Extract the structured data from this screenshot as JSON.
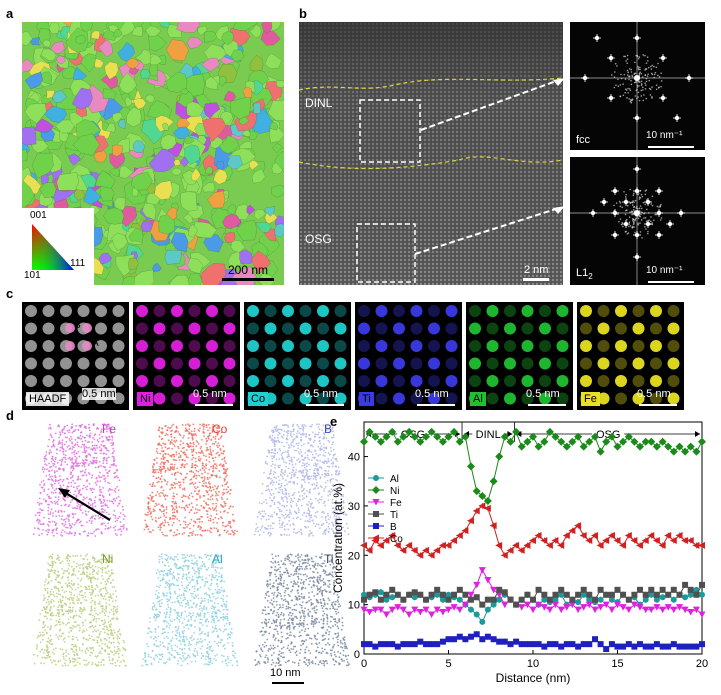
{
  "panel_labels": {
    "a": "a",
    "b": "b",
    "c": "c",
    "d": "d",
    "e": "e"
  },
  "panel_a": {
    "scale_bar": "200 nm",
    "legend": {
      "top": "001",
      "left": "101",
      "right": "111"
    }
  },
  "panel_b": {
    "region_top": "DINL",
    "region_bottom": "OSG",
    "scale_bar": "2 nm",
    "fft_top": {
      "phase": "fcc",
      "scale": "10 nm⁻¹"
    },
    "fft_bottom": {
      "phase_main": "L1",
      "phase_sub": "2",
      "scale": "10 nm⁻¹"
    }
  },
  "panel_c": {
    "tiles": [
      {
        "label": "HAADF",
        "scale": "0.5 nm",
        "color": "#9a9a9a"
      },
      {
        "label": "Ni",
        "scale": "0.5 nm",
        "color": "#e020e0"
      },
      {
        "label": "Co",
        "scale": "0.5 nm",
        "color": "#20d0d0"
      },
      {
        "label": "Ti",
        "scale": "0.5 nm",
        "color": "#3a3ae8"
      },
      {
        "label": "Al",
        "scale": "0.5 nm",
        "color": "#20c030"
      },
      {
        "label": "Fe",
        "scale": "0.5 nm",
        "color": "#e8e020"
      }
    ],
    "site_b": "B",
    "site_a": "A"
  },
  "panel_d": {
    "maps": [
      {
        "element": "Fe",
        "color": "#e070e0",
        "label_color": "#c040c0"
      },
      {
        "element": "Co",
        "color": "#f07060",
        "label_color": "#e04040"
      },
      {
        "element": "B",
        "color": "#b0b8e8",
        "label_color": "#4050b0"
      },
      {
        "element": "Ni",
        "color": "#b8d080",
        "label_color": "#7a9a30"
      },
      {
        "element": "Al",
        "color": "#90d0e0",
        "label_color": "#30a0c0"
      },
      {
        "element": "Ti",
        "color": "#7a8aa0",
        "label_color": "#3a4a70"
      }
    ],
    "scale_bar": "10 nm"
  },
  "chart_data": {
    "type": "line",
    "xlabel": "Distance (nm)",
    "ylabel": "Concentration (at.%)",
    "xlim": [
      0,
      20
    ],
    "ylim": [
      0,
      47
    ],
    "xticks": [
      0,
      5,
      10,
      15,
      20
    ],
    "yticks": [
      0,
      10,
      20,
      30,
      40
    ],
    "region_labels": [
      {
        "text": "OSG",
        "from": 0,
        "to": 5.8
      },
      {
        "text": "DINL",
        "from": 5.8,
        "to": 8.9
      },
      {
        "text": "OSG",
        "from": 8.9,
        "to": 20
      }
    ],
    "legend_placement": "left",
    "x": [
      0,
      0.33,
      0.67,
      1,
      1.33,
      1.67,
      2,
      2.33,
      2.67,
      3,
      3.33,
      3.67,
      4,
      4.33,
      4.67,
      5,
      5.33,
      5.67,
      6,
      6.33,
      6.67,
      7,
      7.33,
      7.67,
      8,
      8.33,
      8.67,
      9,
      9.33,
      9.67,
      10,
      10.33,
      10.67,
      11,
      11.33,
      11.67,
      12,
      12.33,
      12.67,
      13,
      13.33,
      13.67,
      14,
      14.33,
      14.67,
      15,
      15.33,
      15.67,
      16,
      16.33,
      16.67,
      17,
      17.33,
      17.67,
      18,
      18.33,
      18.67,
      19,
      19.33,
      19.67,
      20
    ],
    "series": [
      {
        "name": "Al",
        "color": "#1a9a9a",
        "marker": "circle",
        "values": [
          12,
          11.5,
          12,
          12.5,
          11,
          11.5,
          12,
          11,
          12,
          11.5,
          12,
          11,
          11.5,
          12,
          11,
          12,
          11.5,
          11,
          10,
          9,
          8,
          6.5,
          9,
          10,
          11,
          12,
          11,
          10,
          11,
          12,
          11,
          10,
          11,
          10.5,
          11,
          12,
          10,
          11,
          10.5,
          12,
          11,
          10.5,
          11,
          12,
          11,
          10.5,
          12,
          11,
          11.5,
          10,
          11,
          12,
          11,
          11.5,
          12,
          11,
          12,
          11.5,
          12,
          13,
          12
        ]
      },
      {
        "name": "Ni",
        "color": "#1a8a1a",
        "marker": "diamond",
        "values": [
          43,
          45,
          44,
          43,
          44,
          45,
          43,
          44,
          45,
          44,
          43,
          44,
          45,
          44,
          43,
          44,
          45,
          43,
          44,
          38,
          33,
          32,
          31,
          35,
          40,
          44,
          43,
          45,
          42,
          43,
          44,
          42,
          43,
          45,
          44,
          43,
          42,
          43,
          44,
          42,
          43,
          44,
          41,
          43,
          44,
          42,
          43,
          44,
          43,
          42,
          43,
          43,
          42,
          43,
          42,
          41,
          42,
          41,
          42,
          41,
          43
        ]
      },
      {
        "name": "Fe",
        "color": "#e020e0",
        "marker": "triangle-down",
        "values": [
          9,
          8.5,
          9,
          9,
          8,
          9,
          9.5,
          9,
          8,
          9,
          8.5,
          9,
          8,
          9,
          8.5,
          9,
          9.5,
          9,
          10,
          12,
          14,
          17,
          15,
          13,
          12,
          10,
          11,
          10,
          9.5,
          10,
          9,
          10,
          9.5,
          9,
          10,
          9,
          9.5,
          10,
          9,
          9.5,
          10,
          9,
          9.5,
          10,
          9,
          10,
          9.5,
          9,
          10,
          9.5,
          9,
          9,
          9.5,
          9,
          9.5,
          9,
          9.5,
          9,
          8.5,
          9,
          8
        ]
      },
      {
        "name": "Ti",
        "color": "#505050",
        "marker": "square",
        "values": [
          11,
          12,
          12.5,
          11,
          12,
          13,
          12,
          11,
          12,
          12.5,
          12,
          11,
          12,
          13,
          12,
          11,
          12,
          13,
          12,
          11,
          11.5,
          10,
          11,
          11,
          13,
          12.5,
          11,
          10,
          11,
          12,
          11,
          13,
          12,
          11,
          12,
          13,
          12,
          11,
          12,
          13,
          12,
          11,
          13,
          12,
          12,
          13,
          12,
          11,
          12,
          13,
          12,
          13,
          12,
          13,
          12,
          13,
          12,
          14,
          13,
          12,
          14
        ]
      },
      {
        "name": "B",
        "color": "#2020c0",
        "marker": "square",
        "values": [
          2,
          2,
          1.5,
          2,
          2,
          2,
          1.5,
          2,
          2,
          2,
          2.5,
          2,
          2,
          2,
          2.5,
          3,
          3,
          3.5,
          3,
          3.5,
          4,
          3,
          3.5,
          3,
          2.5,
          2.5,
          2,
          2.5,
          2,
          2,
          2,
          2,
          1.5,
          2,
          2,
          1.5,
          2,
          2,
          1.5,
          2,
          2,
          3,
          2,
          1,
          2,
          1.5,
          1.5,
          2,
          1.5,
          2,
          1.5,
          1.5,
          2,
          1.5,
          1.5,
          2,
          1.5,
          1.5,
          1.5,
          1.5,
          2
        ]
      },
      {
        "name": "Co",
        "color": "#d02020",
        "marker": "triangle-left",
        "values": [
          22,
          21,
          23,
          22,
          23,
          24,
          22,
          21,
          22,
          21,
          20,
          21,
          20,
          21,
          22,
          22,
          23,
          24,
          25,
          27,
          29,
          30,
          29.5,
          26,
          22,
          20,
          21,
          22,
          21,
          22,
          23,
          24,
          23,
          22,
          23,
          22,
          24,
          25,
          26,
          24,
          23,
          24,
          22,
          23,
          24,
          23,
          22,
          24,
          23,
          22,
          23,
          24,
          23,
          22,
          24,
          23,
          24,
          23,
          23,
          22,
          22
        ]
      }
    ]
  }
}
